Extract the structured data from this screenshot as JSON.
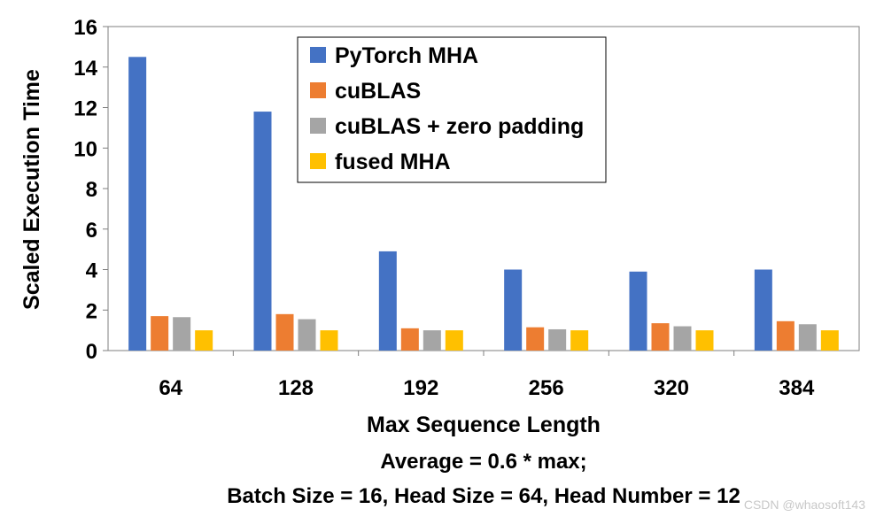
{
  "chart_data": {
    "type": "bar",
    "title": "",
    "xlabel": "Max Sequence Length",
    "ylabel": "Scaled Execution Time",
    "ylim": [
      0,
      16
    ],
    "yticks": [
      0,
      2,
      4,
      6,
      8,
      10,
      12,
      14,
      16
    ],
    "categories": [
      "64",
      "128",
      "192",
      "256",
      "320",
      "384"
    ],
    "series": [
      {
        "name": "PyTorch MHA",
        "color": "#4472C4",
        "values": [
          14.5,
          11.8,
          4.9,
          4.0,
          3.9,
          4.0
        ]
      },
      {
        "name": "cuBLAS",
        "color": "#ED7D31",
        "values": [
          1.7,
          1.8,
          1.1,
          1.15,
          1.35,
          1.45
        ]
      },
      {
        "name": "cuBLAS + zero padding",
        "color": "#A5A5A5",
        "values": [
          1.65,
          1.55,
          1.0,
          1.05,
          1.2,
          1.3
        ]
      },
      {
        "name": "fused MHA",
        "color": "#FFC000",
        "values": [
          1.0,
          1.0,
          1.0,
          1.0,
          1.0,
          1.0
        ]
      }
    ],
    "legend_position": "top-right",
    "annotations": [
      "Average = 0.6 * max;",
      "Batch Size = 16, Head Size = 64, Head Number = 12"
    ]
  },
  "watermark": "CSDN @whaosoft143"
}
